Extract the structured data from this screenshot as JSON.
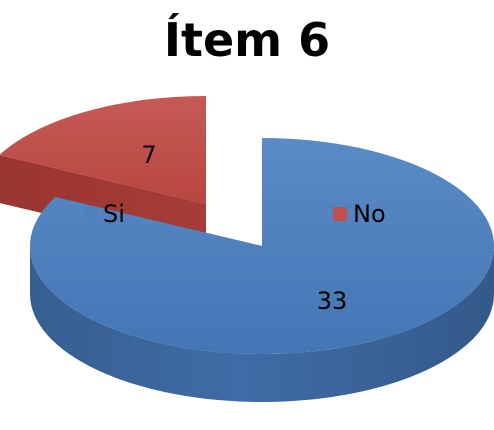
{
  "chart_data": {
    "type": "pie",
    "title": "Ítem 6",
    "categories": [
      "Si",
      "No"
    ],
    "values": [
      33,
      7
    ],
    "colors": [
      "#4f81bd",
      "#c0504d"
    ],
    "style": "3d-exploded",
    "legend_position": "inside-top"
  }
}
